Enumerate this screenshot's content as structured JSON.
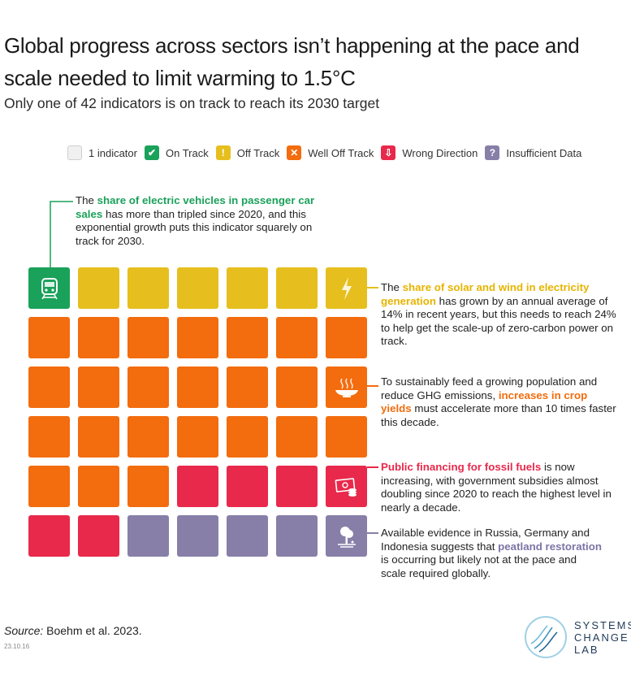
{
  "title": "Global progress across sectors isn’t happening at the pace and scale needed to limit warming to 1.5°C",
  "subtitle": "Only one of 42 indicators is on track to reach its 2030 target",
  "legend": [
    {
      "label": "1 indicator",
      "color": "#f0f0f0",
      "glyph": ""
    },
    {
      "label": "On Track",
      "color": "#1aa15a",
      "glyph": "✔"
    },
    {
      "label": "Off Track",
      "color": "#e6bf1e",
      "glyph": "!"
    },
    {
      "label": "Well Off Track",
      "color": "#f36c0e",
      "glyph": "✕"
    },
    {
      "label": "Wrong Direction",
      "color": "#e8294b",
      "glyph": "⇩"
    },
    {
      "label": "Insufficient Data",
      "color": "#877fa8",
      "glyph": "?"
    }
  ],
  "colors": {
    "on_track": "#1aa15a",
    "off_track": "#e6bf1e",
    "well_off_track": "#f36c0e",
    "wrong_direction": "#e8294b",
    "insufficient_data": "#877fa8"
  },
  "grid": [
    [
      "on_track",
      "off_track",
      "off_track",
      "off_track",
      "off_track",
      "off_track",
      "off_track"
    ],
    [
      "well_off_track",
      "well_off_track",
      "well_off_track",
      "well_off_track",
      "well_off_track",
      "well_off_track",
      "well_off_track"
    ],
    [
      "well_off_track",
      "well_off_track",
      "well_off_track",
      "well_off_track",
      "well_off_track",
      "well_off_track",
      "well_off_track"
    ],
    [
      "well_off_track",
      "well_off_track",
      "well_off_track",
      "well_off_track",
      "well_off_track",
      "well_off_track",
      "well_off_track"
    ],
    [
      "well_off_track",
      "well_off_track",
      "well_off_track",
      "wrong_direction",
      "wrong_direction",
      "wrong_direction",
      "wrong_direction"
    ],
    [
      "wrong_direction",
      "wrong_direction",
      "insufficient_data",
      "insufficient_data",
      "insufficient_data",
      "insufficient_data",
      "insufficient_data"
    ]
  ],
  "cell_icons": [
    {
      "row": 0,
      "col": 0,
      "icon": "train-icon"
    },
    {
      "row": 0,
      "col": 6,
      "icon": "lightning-icon"
    },
    {
      "row": 2,
      "col": 6,
      "icon": "food-bowl-icon"
    },
    {
      "row": 4,
      "col": 6,
      "icon": "money-icon"
    },
    {
      "row": 5,
      "col": 6,
      "icon": "peatland-tree-icon"
    }
  ],
  "annotations": {
    "ev": {
      "pre": "The ",
      "highlight": "share of electric vehicles in passenger car sales",
      "post": " has more than tripled since 2020, and this exponential growth puts this indicator squarely on track for 2030."
    },
    "solar": {
      "pre": "The ",
      "highlight": "share of solar and wind in electricity generation",
      "post": " has grown by an annual average of 14% in recent years, but this needs to reach 24% to help get the scale-up of zero-carbon power on track."
    },
    "crop": {
      "pre": "To sustainably feed a growing population and reduce GHG emissions, ",
      "highlight": "increases in crop yields",
      "post": " must accelerate more than 10 times faster this decade."
    },
    "fossil": {
      "pre": "",
      "highlight": "Public financing for fossil fuels",
      "post": " is now increasing, with government subsidies almost doubling since 2020 to reach the highest level in nearly a decade."
    },
    "peat": {
      "pre": "Available evidence in Russia, Germany and Indonesia suggests that ",
      "highlight": "peatland restoration",
      "post": " is occurring but likely not at the pace and scale required globally."
    }
  },
  "source_label": "Source:",
  "source_text": " Boehm et al. 2023.",
  "date_code": "23.10.16",
  "logo": {
    "line1": "SYSTEMS",
    "line2": "CHANGE",
    "line3": "LAB"
  }
}
